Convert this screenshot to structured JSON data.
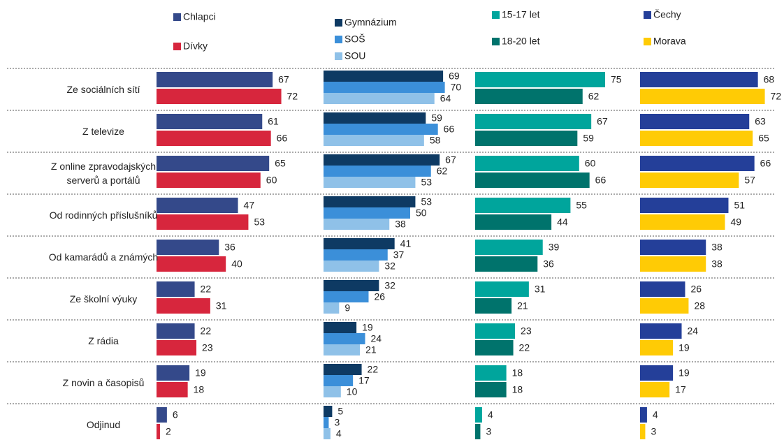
{
  "chart_data": [
    {
      "type": "bar",
      "orientation": "horizontal",
      "xlim": [
        0,
        100
      ],
      "categories": [
        "Ze sociálních sítí",
        "Z televize",
        "Z online zpravodajských serverů a portálů",
        "Od rodinných příslušníků",
        "Od kamarádů a známých",
        "Ze školní výuky",
        "Z rádia",
        "Z novin a časopisů",
        "Odjinud"
      ],
      "series": [
        {
          "name": "Chlapci",
          "color": "#34498a",
          "values": [
            67,
            61,
            65,
            47,
            36,
            22,
            22,
            19,
            6
          ]
        },
        {
          "name": "Dívky",
          "color": "#d7263d",
          "values": [
            72,
            66,
            60,
            53,
            40,
            31,
            23,
            18,
            2
          ]
        }
      ]
    },
    {
      "type": "bar",
      "orientation": "horizontal",
      "xlim": [
        0,
        100
      ],
      "series": [
        {
          "name": "Gymnázium",
          "color": "#0e3a63",
          "values": [
            69,
            59,
            67,
            53,
            41,
            32,
            19,
            22,
            5
          ]
        },
        {
          "name": "SOŠ",
          "color": "#3b8fd9",
          "values": [
            70,
            66,
            62,
            50,
            37,
            26,
            24,
            17,
            3
          ]
        },
        {
          "name": "SOU",
          "color": "#8fc1e8",
          "values": [
            64,
            58,
            53,
            38,
            32,
            9,
            21,
            10,
            4
          ]
        }
      ]
    },
    {
      "type": "bar",
      "orientation": "horizontal",
      "xlim": [
        0,
        100
      ],
      "series": [
        {
          "name": "15-17 let",
          "color": "#00a59c",
          "values": [
            75,
            67,
            60,
            55,
            39,
            31,
            23,
            18,
            4
          ]
        },
        {
          "name": "18-20 let",
          "color": "#00736c",
          "values": [
            62,
            59,
            66,
            44,
            36,
            21,
            22,
            18,
            3
          ]
        }
      ]
    },
    {
      "type": "bar",
      "orientation": "horizontal",
      "xlim": [
        0,
        100
      ],
      "series": [
        {
          "name": "Čechy",
          "color": "#243f99",
          "values": [
            68,
            63,
            66,
            51,
            38,
            26,
            24,
            19,
            4
          ]
        },
        {
          "name": "Morava",
          "color": "#ffcb05",
          "values": [
            72,
            65,
            57,
            49,
            38,
            28,
            19,
            17,
            3
          ]
        }
      ]
    }
  ]
}
